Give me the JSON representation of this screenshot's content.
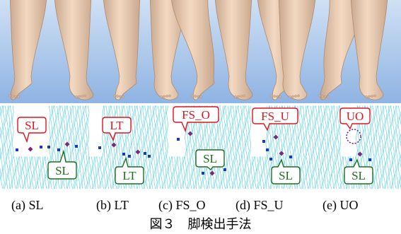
{
  "panels": [
    {
      "label": "(a) SL",
      "bubbles": [
        {
          "text": "SL",
          "color": "#e0141e",
          "tail": "down"
        },
        {
          "text": "SL",
          "color": "#1e6e1e",
          "tail": "up"
        }
      ],
      "ghost_circle": false
    },
    {
      "label": "(b) LT",
      "bubbles": [
        {
          "text": "LT",
          "color": "#e0141e",
          "tail": "down"
        },
        {
          "text": "LT",
          "color": "#1e6e1e",
          "tail": "up"
        }
      ],
      "ghost_circle": false
    },
    {
      "label": "(c) FS_O",
      "bubbles": [
        {
          "text": "FS_O",
          "color": "#e0141e",
          "tail": "down"
        },
        {
          "text": "SL",
          "color": "#1e6e1e",
          "tail": "down"
        }
      ],
      "ghost_circle": false
    },
    {
      "label": "(d) FS_U",
      "bubbles": [
        {
          "text": "FS_U",
          "color": "#e0141e",
          "tail": "down"
        },
        {
          "text": "SL",
          "color": "#1e6e1e",
          "tail": "up"
        }
      ],
      "ghost_circle": false
    },
    {
      "label": "(e) UO",
      "bubbles": [
        {
          "text": "UO",
          "color": "#e0141e",
          "tail": "down"
        },
        {
          "text": "SL",
          "color": "#1e6e1e",
          "tail": "up"
        }
      ],
      "ghost_circle": true
    }
  ],
  "caption": "図３　脚検出手法",
  "colors": {
    "sky": "#93b9e6",
    "skin": "#e9c8ad",
    "sensor_line": "#33c7de",
    "blue_point": "#1436d2",
    "purple_point": "#7a2a78",
    "red_box": "#e0141e",
    "green_box": "#1e6e1e"
  }
}
